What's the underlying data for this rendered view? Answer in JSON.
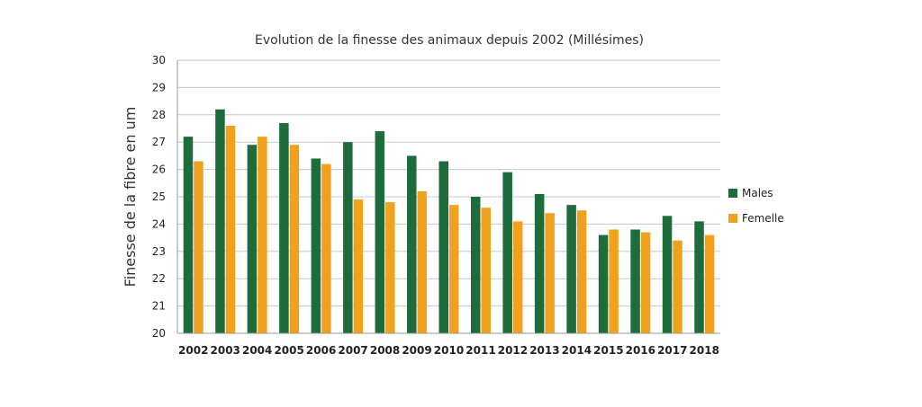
{
  "chart_data": {
    "type": "bar",
    "title": "Evolution de la finesse des animaux depuis 2002 (Millésimes)",
    "xlabel": "",
    "ylabel": "Finesse de la fibre en um",
    "ylim": [
      20,
      30
    ],
    "yticks": [
      20,
      21,
      22,
      23,
      24,
      25,
      26,
      27,
      28,
      29,
      30
    ],
    "grid": true,
    "legend_position": "right",
    "categories": [
      "2002",
      "2003",
      "2004",
      "2005",
      "2006",
      "2007",
      "2008",
      "2009",
      "2010",
      "2011",
      "2012",
      "2013",
      "2014",
      "2015",
      "2016",
      "2017",
      "2018"
    ],
    "series": [
      {
        "name": "Males",
        "color": "#1e6b3c",
        "values": [
          27.2,
          28.2,
          26.9,
          27.7,
          26.4,
          27.0,
          27.4,
          26.5,
          26.3,
          25.0,
          25.9,
          25.1,
          24.7,
          23.6,
          23.8,
          24.3,
          24.1
        ]
      },
      {
        "name": "Femelle",
        "color": "#f0a21e",
        "values": [
          26.3,
          27.6,
          27.2,
          26.9,
          26.2,
          24.9,
          24.8,
          25.2,
          24.7,
          24.6,
          24.1,
          24.4,
          24.5,
          23.8,
          23.7,
          23.4,
          23.6
        ]
      }
    ]
  }
}
